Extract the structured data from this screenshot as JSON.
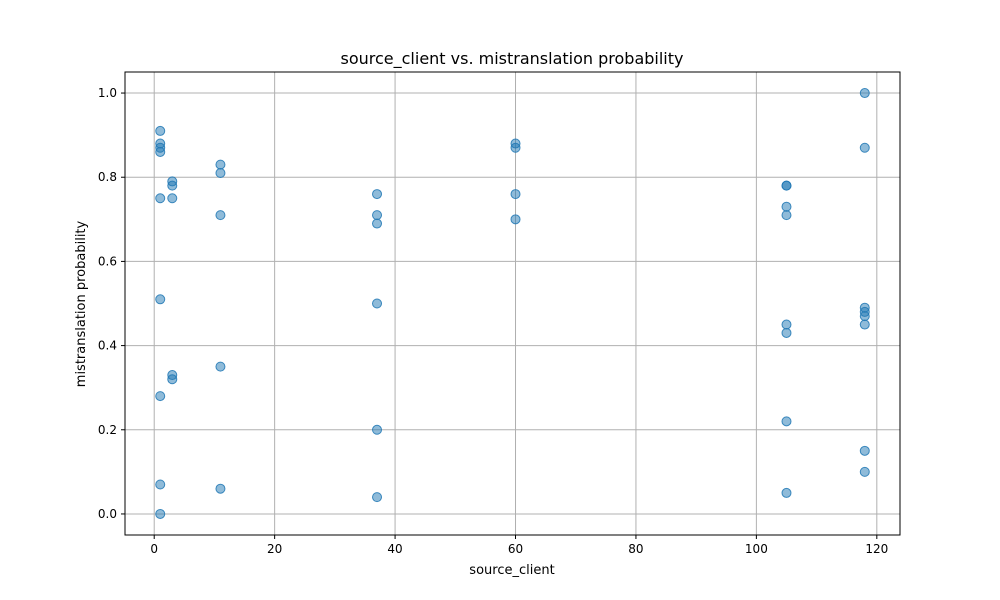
{
  "chart_data": {
    "type": "scatter",
    "title": "source_client vs. mistranslation probability",
    "xlabel": "source_client",
    "ylabel": "mistranslation probability",
    "xlim": [
      -4.85,
      123.85
    ],
    "ylim": [
      -0.05,
      1.05
    ],
    "xticks": [
      0,
      20,
      40,
      60,
      80,
      100,
      120
    ],
    "yticks": [
      0.0,
      0.2,
      0.4,
      0.6,
      0.8,
      1.0
    ],
    "xtick_labels": [
      "0",
      "20",
      "40",
      "60",
      "80",
      "100",
      "120"
    ],
    "ytick_labels": [
      "0.0",
      "0.2",
      "0.4",
      "0.6",
      "0.8",
      "1.0"
    ],
    "grid": true,
    "marker_color": "#1f77b4",
    "marker_alpha": 0.5,
    "points": [
      {
        "x": 1,
        "y": 0.91
      },
      {
        "x": 1,
        "y": 0.88
      },
      {
        "x": 1,
        "y": 0.87
      },
      {
        "x": 1,
        "y": 0.86
      },
      {
        "x": 1,
        "y": 0.75
      },
      {
        "x": 1,
        "y": 0.51
      },
      {
        "x": 1,
        "y": 0.28
      },
      {
        "x": 1,
        "y": 0.07
      },
      {
        "x": 1,
        "y": 0.0
      },
      {
        "x": 3,
        "y": 0.79
      },
      {
        "x": 3,
        "y": 0.78
      },
      {
        "x": 3,
        "y": 0.75
      },
      {
        "x": 3,
        "y": 0.33
      },
      {
        "x": 3,
        "y": 0.32
      },
      {
        "x": 11,
        "y": 0.83
      },
      {
        "x": 11,
        "y": 0.81
      },
      {
        "x": 11,
        "y": 0.71
      },
      {
        "x": 11,
        "y": 0.35
      },
      {
        "x": 11,
        "y": 0.06
      },
      {
        "x": 37,
        "y": 0.76
      },
      {
        "x": 37,
        "y": 0.71
      },
      {
        "x": 37,
        "y": 0.69
      },
      {
        "x": 37,
        "y": 0.5
      },
      {
        "x": 37,
        "y": 0.2
      },
      {
        "x": 37,
        "y": 0.04
      },
      {
        "x": 60,
        "y": 0.88
      },
      {
        "x": 60,
        "y": 0.87
      },
      {
        "x": 60,
        "y": 0.76
      },
      {
        "x": 60,
        "y": 0.7
      },
      {
        "x": 105,
        "y": 0.78
      },
      {
        "x": 105,
        "y": 0.78
      },
      {
        "x": 105,
        "y": 0.73
      },
      {
        "x": 105,
        "y": 0.71
      },
      {
        "x": 105,
        "y": 0.45
      },
      {
        "x": 105,
        "y": 0.43
      },
      {
        "x": 105,
        "y": 0.22
      },
      {
        "x": 105,
        "y": 0.05
      },
      {
        "x": 118,
        "y": 1.0
      },
      {
        "x": 118,
        "y": 0.87
      },
      {
        "x": 118,
        "y": 0.49
      },
      {
        "x": 118,
        "y": 0.48
      },
      {
        "x": 118,
        "y": 0.47
      },
      {
        "x": 118,
        "y": 0.45
      },
      {
        "x": 118,
        "y": 0.15
      },
      {
        "x": 118,
        "y": 0.1
      }
    ]
  }
}
